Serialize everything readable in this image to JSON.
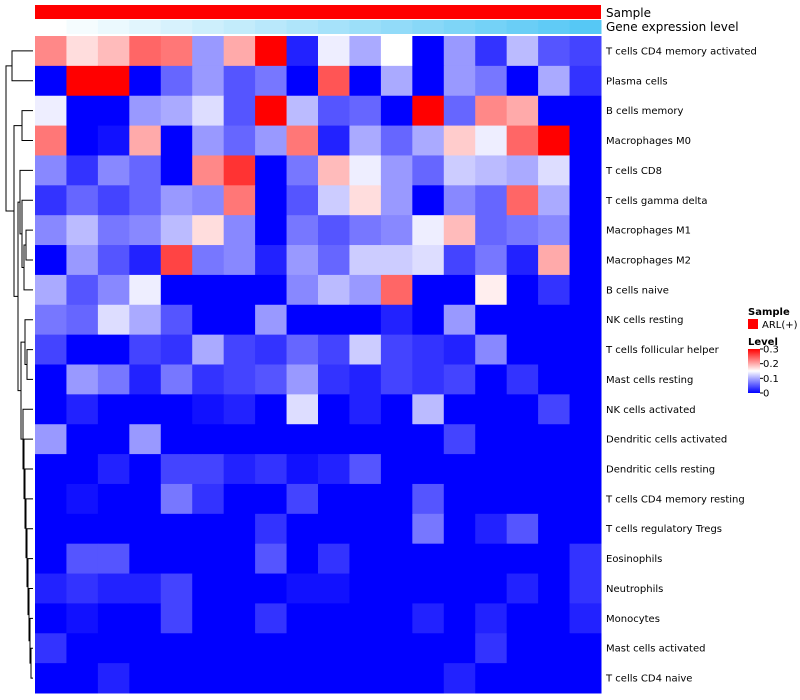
{
  "colors": {
    "low": "#0000FF",
    "mid": "#FFFFFF",
    "high": "#FF0000",
    "sample_bar": "#FF0000",
    "gene_bar_low": "#FFFFFF",
    "gene_bar_high": "#56C8F5"
  },
  "chart_data": {
    "type": "heatmap",
    "title": "",
    "annotations": {
      "sample_label": "Sample",
      "gene_label": "Gene expression level",
      "n_columns": 18
    },
    "legend": {
      "sample_title": "Sample",
      "sample_entry": "ARL(+)",
      "level_title": "Level",
      "ticks": [
        0.3,
        0.2,
        0.1,
        0
      ],
      "tick_labels": [
        "0.3",
        "0.2",
        "0.1",
        "0"
      ],
      "range": [
        0,
        0.3
      ]
    },
    "rows": [
      "T cells CD4 memory activated",
      "Plasma cells",
      "B cells memory",
      "Macrophages M0",
      "T cells CD8",
      "T cells gamma delta",
      "Macrophages M1",
      "Macrophages M2",
      "B cells naive",
      "NK cells resting",
      "T cells follicular helper",
      "Mast cells resting",
      "NK cells activated",
      "Dendritic cells activated",
      "Dendritic cells resting",
      "T cells CD4 memory resting",
      "T cells regulatory  Tregs",
      "Eosinophils",
      "Neutrophils",
      "Monocytes",
      "Mast cells activated",
      "T cells CD4 naive"
    ],
    "values": [
      [
        0.22,
        0.17,
        0.19,
        0.24,
        0.23,
        0.09,
        0.2,
        0.3,
        0.02,
        0.14,
        0.1,
        0.15,
        0.0,
        0.09,
        0.03,
        0.11,
        0.05,
        0.04
      ],
      [
        0.0,
        0.3,
        0.3,
        0.0,
        0.06,
        0.09,
        0.05,
        0.07,
        0.0,
        0.25,
        0.0,
        0.1,
        0.0,
        0.09,
        0.07,
        0.0,
        0.1,
        0.03
      ],
      [
        0.14,
        0.0,
        0.0,
        0.09,
        0.1,
        0.13,
        0.05,
        0.3,
        0.11,
        0.05,
        0.06,
        0.0,
        0.3,
        0.06,
        0.22,
        0.2,
        0.0,
        0.0
      ],
      [
        0.23,
        0.0,
        0.01,
        0.2,
        0.0,
        0.09,
        0.06,
        0.09,
        0.23,
        0.02,
        0.1,
        0.06,
        0.1,
        0.18,
        0.14,
        0.24,
        0.3,
        0.0
      ],
      [
        0.08,
        0.03,
        0.08,
        0.06,
        0.0,
        0.22,
        0.27,
        0.0,
        0.07,
        0.19,
        0.14,
        0.09,
        0.06,
        0.12,
        0.11,
        0.1,
        0.13,
        0.0
      ],
      [
        0.03,
        0.06,
        0.04,
        0.06,
        0.09,
        0.08,
        0.23,
        0.0,
        0.05,
        0.12,
        0.17,
        0.09,
        0.0,
        0.08,
        0.06,
        0.24,
        0.1,
        0.0
      ],
      [
        0.08,
        0.11,
        0.07,
        0.08,
        0.11,
        0.17,
        0.08,
        0.0,
        0.07,
        0.05,
        0.07,
        0.08,
        0.14,
        0.19,
        0.06,
        0.07,
        0.08,
        0.0
      ],
      [
        0.0,
        0.09,
        0.05,
        0.02,
        0.26,
        0.07,
        0.08,
        0.02,
        0.09,
        0.06,
        0.12,
        0.12,
        0.13,
        0.04,
        0.07,
        0.02,
        0.2,
        0.0
      ],
      [
        0.1,
        0.05,
        0.08,
        0.14,
        0.0,
        0.0,
        0.0,
        0.0,
        0.08,
        0.11,
        0.09,
        0.24,
        0.0,
        0.0,
        0.16,
        0.0,
        0.03,
        0.0
      ],
      [
        0.07,
        0.06,
        0.13,
        0.1,
        0.05,
        0.0,
        0.0,
        0.09,
        0.0,
        0.0,
        0.0,
        0.02,
        0.0,
        0.09,
        0.0,
        0.0,
        0.0,
        0.0
      ],
      [
        0.04,
        0.0,
        0.0,
        0.04,
        0.03,
        0.1,
        0.04,
        0.03,
        0.06,
        0.04,
        0.12,
        0.04,
        0.03,
        0.02,
        0.08,
        0.0,
        0.0,
        0.0
      ],
      [
        0.0,
        0.09,
        0.07,
        0.02,
        0.07,
        0.03,
        0.04,
        0.05,
        0.09,
        0.03,
        0.02,
        0.04,
        0.03,
        0.04,
        0.0,
        0.03,
        0.0,
        0.0
      ],
      [
        0.0,
        0.02,
        0.0,
        0.0,
        0.0,
        0.01,
        0.02,
        0.0,
        0.13,
        0.0,
        0.02,
        0.0,
        0.11,
        0.0,
        0.0,
        0.0,
        0.04,
        0.0
      ],
      [
        0.09,
        0.0,
        0.0,
        0.09,
        0.0,
        0.0,
        0.0,
        0.0,
        0.0,
        0.0,
        0.0,
        0.0,
        0.0,
        0.04,
        0.0,
        0.0,
        0.0,
        0.0
      ],
      [
        0.0,
        0.0,
        0.02,
        0.0,
        0.04,
        0.04,
        0.02,
        0.03,
        0.01,
        0.02,
        0.05,
        0.0,
        0.0,
        0.0,
        0.0,
        0.0,
        0.0,
        0.0
      ],
      [
        0.0,
        0.01,
        0.0,
        0.0,
        0.07,
        0.03,
        0.0,
        0.0,
        0.04,
        0.0,
        0.0,
        0.0,
        0.05,
        0.0,
        0.0,
        0.0,
        0.0,
        0.0
      ],
      [
        0.0,
        0.0,
        0.0,
        0.0,
        0.0,
        0.0,
        0.0,
        0.03,
        0.0,
        0.0,
        0.0,
        0.0,
        0.07,
        0.0,
        0.02,
        0.05,
        0.0,
        0.0
      ],
      [
        0.0,
        0.05,
        0.05,
        0.0,
        0.0,
        0.0,
        0.0,
        0.05,
        0.0,
        0.03,
        0.0,
        0.0,
        0.0,
        0.0,
        0.0,
        0.0,
        0.0,
        0.03
      ],
      [
        0.02,
        0.03,
        0.02,
        0.02,
        0.04,
        0.0,
        0.0,
        0.0,
        0.01,
        0.01,
        0.0,
        0.0,
        0.0,
        0.0,
        0.0,
        0.02,
        0.0,
        0.03
      ],
      [
        0.0,
        0.01,
        0.0,
        0.0,
        0.04,
        0.0,
        0.0,
        0.03,
        0.0,
        0.0,
        0.0,
        0.0,
        0.02,
        0.0,
        0.02,
        0.0,
        0.0,
        0.02
      ],
      [
        0.03,
        0.0,
        0.0,
        0.0,
        0.0,
        0.0,
        0.0,
        0.0,
        0.0,
        0.0,
        0.0,
        0.0,
        0.0,
        0.0,
        0.03,
        0.0,
        0.0,
        0.0
      ],
      [
        0.0,
        0.0,
        0.02,
        0.0,
        0.0,
        0.0,
        0.0,
        0.0,
        0.0,
        0.0,
        0.0,
        0.0,
        0.0,
        0.02,
        0.0,
        0.0,
        0.0,
        0.0
      ]
    ]
  }
}
